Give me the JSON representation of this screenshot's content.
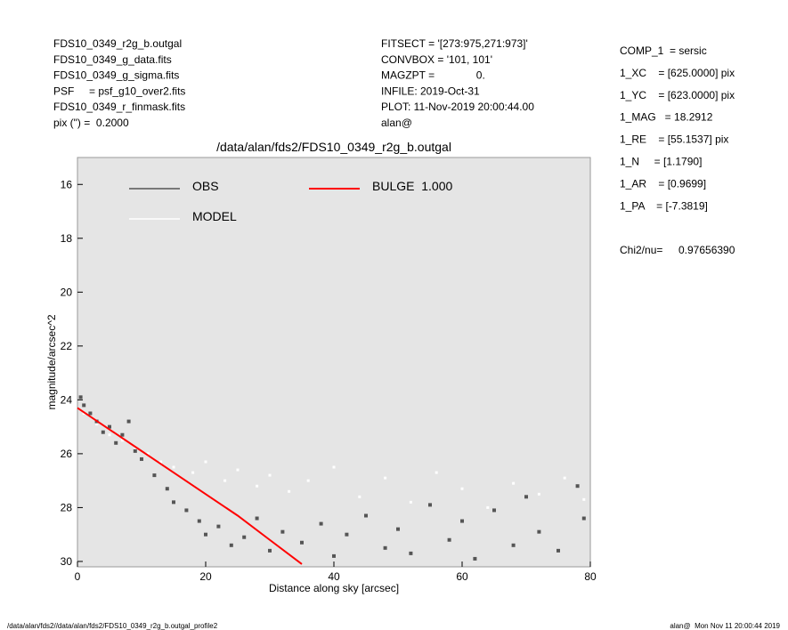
{
  "header": {
    "left": [
      "FDS10_0349_r2g_b.outgal",
      "FDS10_0349_g_data.fits",
      "FDS10_0349_g_sigma.fits",
      "PSF     = psf_g10_over2.fits",
      "FDS10_0349_r_finmask.fits",
      "pix (\") =  0.2000"
    ],
    "middle": [
      "FITSECT = '[273:975,271:973]'",
      "CONVBOX = '101, 101'",
      "MAGZPT =              0.",
      "INFILE: 2019-Oct-31",
      "PLOT: 11-Nov-2019 20:00:44.00",
      "alan@"
    ],
    "right": [
      "COMP_1  = sersic",
      "1_XC    = [625.0000] pix",
      "1_YC    = [623.0000] pix",
      "1_MAG   = 18.2912",
      "1_RE    = [55.1537] pix",
      "1_N     = [1.1790]",
      "1_AR    = [0.9699]",
      "1_PA    = [-7.3819]"
    ],
    "chi2_label": "Chi2/nu=",
    "chi2_value": "0.97656390",
    "footer_left": "/data/alan/fds2//data/alan/fds2/FDS10_0349_r2g_b.outgal_profile2",
    "footer_right": "alan@  Mon Nov 11 20:00:44 2019"
  },
  "chart_data": {
    "type": "scatter",
    "title": "/data/alan/fds2/FDS10_0349_r2g_b.outgal",
    "x_label": "Distance along sky [arcsec]",
    "y_label": "magnitude/arcsec^2",
    "xlim": [
      0,
      80
    ],
    "xticks": [
      0,
      20,
      40,
      60,
      80
    ],
    "ylim": [
      30.2,
      15
    ],
    "yticks": [
      16,
      18,
      20,
      22,
      24,
      26,
      28,
      30
    ],
    "series": [
      {
        "name": "MODEL",
        "type": "scatter",
        "color": "#ffffff",
        "x": [
          1,
          3,
          5,
          7,
          9,
          11,
          13,
          15,
          18,
          20,
          23,
          25,
          28,
          30,
          33,
          36,
          40,
          44,
          48,
          52,
          56,
          60,
          64,
          68,
          72,
          76,
          79
        ],
        "values": [
          24.5,
          24.9,
          25.3,
          25.5,
          25.8,
          26.0,
          26.3,
          26.5,
          26.7,
          26.3,
          27.0,
          26.6,
          27.2,
          26.8,
          27.4,
          27.0,
          26.5,
          27.6,
          26.9,
          27.8,
          26.7,
          27.3,
          28.0,
          27.1,
          27.5,
          26.9,
          27.7
        ]
      },
      {
        "name": "OBS",
        "type": "scatter",
        "color": "#555555",
        "x": [
          0.5,
          1,
          2,
          3,
          4,
          5,
          6,
          7,
          8,
          9,
          10,
          12,
          14,
          15,
          17,
          19,
          20,
          22,
          24,
          26,
          28,
          30,
          32,
          35,
          38,
          40,
          42,
          45,
          48,
          50,
          52,
          55,
          58,
          60,
          62,
          65,
          68,
          70,
          72,
          75,
          78,
          79
        ],
        "values": [
          23.9,
          24.2,
          24.5,
          24.8,
          25.2,
          25.0,
          25.6,
          25.3,
          24.8,
          25.9,
          26.2,
          26.8,
          27.3,
          27.8,
          28.1,
          28.5,
          29.0,
          28.7,
          29.4,
          29.1,
          28.4,
          29.6,
          28.9,
          29.3,
          28.6,
          29.8,
          29.0,
          28.3,
          29.5,
          28.8,
          29.7,
          27.9,
          29.2,
          28.5,
          29.9,
          28.1,
          29.4,
          27.6,
          28.9,
          29.6,
          27.2,
          28.4
        ]
      },
      {
        "name": "BULGE  1.000",
        "type": "line",
        "color": "#ff0000",
        "x": [
          0,
          5,
          10,
          15,
          20,
          25,
          30,
          35
        ],
        "values": [
          24.3,
          25.1,
          25.9,
          26.7,
          27.5,
          28.3,
          29.2,
          30.1
        ]
      }
    ]
  }
}
